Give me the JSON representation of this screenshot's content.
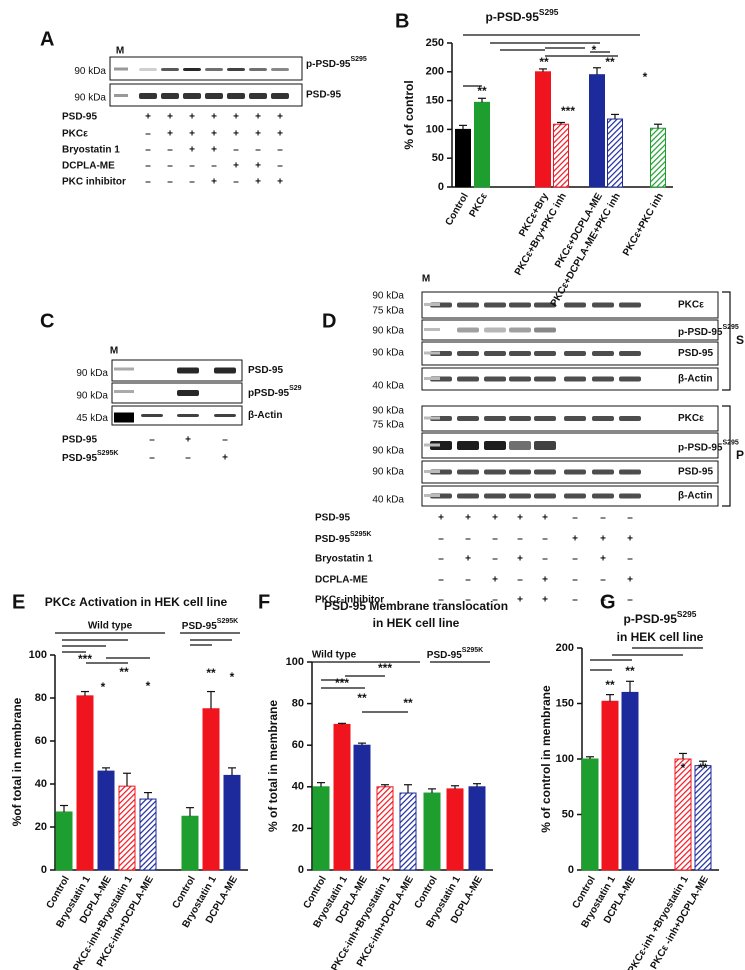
{
  "blots": {
    "A": {
      "label": "A",
      "marker": "M",
      "kda": [
        "90 kDa",
        "90 kDa"
      ],
      "bands": [
        {
          "text": "p-PSD-95",
          "sup": "S295"
        },
        "PSD-95"
      ],
      "conditions": [
        {
          "name": "PSD-95",
          "signs": [
            "+",
            "+",
            "+",
            "+",
            "+",
            "+",
            "+"
          ]
        },
        {
          "name": "PKCε",
          "signs": [
            "–",
            "+",
            "+",
            "+",
            "+",
            "+",
            "+"
          ]
        },
        {
          "name": "Bryostatin 1",
          "signs": [
            "–",
            "–",
            "+",
            "+",
            "–",
            "–",
            "–"
          ]
        },
        {
          "name": "DCPLA-ME",
          "signs": [
            "–",
            "–",
            "–",
            "–",
            "+",
            "+",
            "–"
          ]
        },
        {
          "name": "PKC inhibitor",
          "signs": [
            "–",
            "–",
            "–",
            "+",
            "–",
            "+",
            "+"
          ]
        }
      ]
    },
    "C": {
      "label": "C",
      "marker": "M",
      "kda": [
        "90 kDa",
        "90 kDa",
        "45 kDa"
      ],
      "bands": [
        "PSD-95",
        {
          "text": "pPSD-95",
          "sup": "S29"
        },
        "β-Actin"
      ],
      "conditions": [
        {
          "name": "PSD-95",
          "signs": [
            "–",
            "+",
            "–"
          ]
        },
        {
          "name": {
            "text": "PSD-95",
            "sup": "S295K"
          },
          "signs": [
            "–",
            "–",
            "+"
          ]
        }
      ]
    },
    "D": {
      "label": "D",
      "marker": "M",
      "fractions": [
        {
          "name": "S",
          "kda": [
            "90 kDa",
            "75 kDa",
            "90 kDa",
            "90 kDa",
            "40 kDa"
          ],
          "bands": [
            "PKCε",
            {
              "text": "p-PSD-95",
              "sup": "S295"
            },
            "PSD-95",
            "β-Actin"
          ]
        },
        {
          "name": "P",
          "kda": [
            "90 kDa",
            "75 kDa",
            "90 kDa",
            "90 kDa",
            "40 kDa"
          ],
          "bands": [
            "PKCε",
            {
              "text": "p-PSD-95",
              "sup": "S295"
            },
            "PSD-95",
            "β-Actin"
          ]
        }
      ],
      "conditions": [
        {
          "name": "PSD-95",
          "signs": [
            "+",
            "+",
            "+",
            "+",
            "+",
            "–",
            "–",
            "–"
          ]
        },
        {
          "name": {
            "text": "PSD-95",
            "sup": "S295K"
          },
          "signs": [
            "–",
            "–",
            "–",
            "–",
            "–",
            "+",
            "+",
            "+"
          ]
        },
        {
          "name": "Bryostatin 1",
          "signs": [
            "–",
            "+",
            "–",
            "+",
            "–",
            "–",
            "+",
            "–"
          ]
        },
        {
          "name": "DCPLA-ME",
          "signs": [
            "–",
            "–",
            "+",
            "–",
            "+",
            "–",
            "–",
            "+"
          ]
        },
        {
          "name": "PKCε-inhibitor",
          "signs": [
            "–",
            "–",
            "–",
            "+",
            "+",
            "–",
            "–",
            "–"
          ]
        }
      ]
    }
  },
  "chart_data": [
    {
      "type": "bar",
      "label": "B",
      "title": [
        {
          "text": "p-PSD-95",
          "sup": "S295"
        }
      ],
      "y_label": "% of control",
      "categories": [
        "Control",
        "PKCε",
        "PKCε+Bry",
        "PKCε+Bry+PKC inh",
        "PKCε+DCPLA-ME",
        "PKCε+DCPLA-ME+PKC inh",
        "PKCε+PKC inh"
      ],
      "values": [
        100,
        147,
        200,
        109,
        195,
        118,
        102
      ],
      "errors": [
        7,
        7,
        5,
        3,
        12,
        8,
        7
      ],
      "colors": [
        "#000000",
        "#1e9e2e",
        "#f0141e",
        "#f0141e",
        "#1c2a9c",
        "#1c2a9c",
        "#1e9e2e"
      ],
      "hatched": [
        false,
        false,
        false,
        true,
        false,
        true,
        true
      ],
      "ylim": [
        0,
        250
      ],
      "yticks": [
        0,
        50,
        100,
        150,
        200,
        250
      ],
      "grid": false,
      "annotations": [
        "**",
        "**",
        "***",
        "*",
        "**",
        "*"
      ]
    },
    {
      "type": "bar",
      "label": "E",
      "title": [
        "PKCε Activation in HEK cell line"
      ],
      "y_label": "%of total  in membrane",
      "groups": [
        "Wild type",
        {
          "text": "PSD-95",
          "sup": "S295K"
        }
      ],
      "categories": [
        "Control",
        "Bryostatin 1",
        "DCPLA-ME",
        "PKCε-inh+Bryostatin 1",
        "PKCε-inh+DCPLA-ME",
        "Control",
        "Bryostatin 1",
        "DCPLA-ME"
      ],
      "values": [
        27,
        81,
        46,
        39,
        33,
        25,
        75,
        44
      ],
      "errors": [
        3,
        2,
        1.5,
        6,
        3,
        4,
        8,
        3.5
      ],
      "colors": [
        "#1e9e2e",
        "#f0141e",
        "#1c2a9c",
        "#f0141e",
        "#1c2a9c",
        "#1e9e2e",
        "#f0141e",
        "#1c2a9c"
      ],
      "hatched": [
        false,
        false,
        false,
        true,
        true,
        false,
        false,
        false
      ],
      "ylim": [
        0,
        100
      ],
      "yticks": [
        0,
        20,
        40,
        60,
        80,
        100
      ],
      "grid": false,
      "annotations": [
        "***",
        "*",
        "**",
        "*",
        "**",
        "*"
      ]
    },
    {
      "type": "bar",
      "label": "F",
      "title": [
        "PSD-95 Membrane translocation",
        "in HEK cell line"
      ],
      "y_label": "% of total  in membrane",
      "groups": [
        "Wild type",
        {
          "text": "PSD-95",
          "sup": "S295K"
        }
      ],
      "categories": [
        "Control",
        "Bryostatin 1",
        "DCPLA-ME",
        "PKCε-inh+Bryostatin 1",
        "PKCε-inh+DCPLA-ME",
        "Control",
        "Bryostatin 1",
        "DCPLA-ME"
      ],
      "values": [
        40,
        70,
        60,
        40,
        37,
        37,
        39,
        40
      ],
      "errors": [
        2,
        0.5,
        1,
        1,
        4,
        2,
        1.5,
        1.5
      ],
      "colors": [
        "#1e9e2e",
        "#f0141e",
        "#1c2a9c",
        "#f0141e",
        "#1c2a9c",
        "#1e9e2e",
        "#f0141e",
        "#1c2a9c"
      ],
      "hatched": [
        false,
        false,
        false,
        true,
        true,
        false,
        false,
        false
      ],
      "ylim": [
        0,
        100
      ],
      "yticks": [
        0,
        20,
        40,
        60,
        80,
        100
      ],
      "grid": false,
      "annotations": [
        "***",
        "**",
        "***",
        "**"
      ]
    },
    {
      "type": "bar",
      "label": "G",
      "title": [
        {
          "text": "p-PSD-95",
          "sup": "S295"
        },
        "in HEK cell line"
      ],
      "y_label": "% of control in membrane",
      "categories": [
        "Control",
        "Bryostatin 1",
        "DCPLA-ME",
        "PKCε-inh +Bryostatin 1",
        "PKCε -inh+DCPLA-ME"
      ],
      "values": [
        100,
        152,
        160,
        100,
        94
      ],
      "errors": [
        2,
        6,
        10,
        5,
        4
      ],
      "colors": [
        "#1e9e2e",
        "#f0141e",
        "#1c2a9c",
        "#f0141e",
        "#1c2a9c"
      ],
      "hatched": [
        false,
        false,
        false,
        true,
        true
      ],
      "ylim": [
        0,
        200
      ],
      "yticks": [
        0,
        50,
        100,
        150,
        200
      ],
      "grid": false,
      "annotations": [
        "**",
        "**",
        "*",
        "**"
      ]
    }
  ]
}
